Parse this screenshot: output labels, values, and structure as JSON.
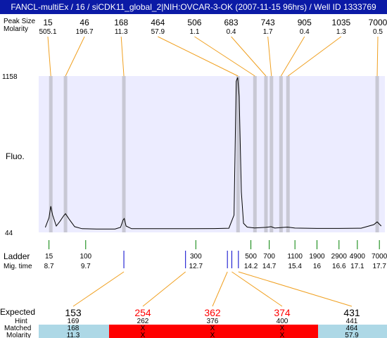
{
  "header": {
    "title": "FANCL-multiEx / 16 / siCDK11_global_2|NIH:OVCAR-3-OK (2007-11-15 96hrs) / Well ID 1333769"
  },
  "row_labels": {
    "peak_size": "Peak Size",
    "molarity": "Molarity",
    "fluo": "Fluo.",
    "ladder": "Ladder",
    "mig_time": "Mig. time",
    "expected": "Expected",
    "hint": "Hint",
    "matched": "Matched",
    "molarity_bottom": "Molarity"
  },
  "colors": {
    "title_bg": "#0b1aa6",
    "plot_bg": "#ececff",
    "peak_band": "#c8c8d4",
    "connector": "#f0a020",
    "ladder_tick": "#008000",
    "sample_tick": "#0000cc",
    "expected_missing": "#ff0000",
    "matched_ok_bg": "#add8e6",
    "matched_fail_bg": "#ff0000"
  },
  "chart_data": {
    "type": "line",
    "y_axis": {
      "min_label": "44",
      "max_label": "1158",
      "ylim": [
        44,
        1158
      ]
    },
    "peaks": [
      {
        "size": "15",
        "molarity": "505.1",
        "mig_time": 8.75
      },
      {
        "size": "46",
        "molarity": "196.7",
        "mig_time": 9.15
      },
      {
        "size": "168",
        "molarity": "11.3",
        "mig_time": 10.74
      },
      {
        "size": "464",
        "molarity": "57.9",
        "mig_time": 13.85
      },
      {
        "size": "506",
        "molarity": "1.1",
        "mig_time": 14.31
      },
      {
        "size": "683",
        "molarity": "0.4",
        "mig_time": 14.61
      },
      {
        "size": "743",
        "molarity": "1.7",
        "mig_time": 14.76
      },
      {
        "size": "905",
        "molarity": "0.4",
        "mig_time": 15.02
      },
      {
        "size": "1035",
        "molarity": "1.3",
        "mig_time": 15.21
      },
      {
        "size": "7000",
        "molarity": "0.5",
        "mig_time": 17.64
      }
    ],
    "trace": [
      [
        8.6,
        60
      ],
      [
        8.7,
        130
      ],
      [
        8.75,
        215
      ],
      [
        8.8,
        150
      ],
      [
        8.9,
        70
      ],
      [
        9.0,
        105
      ],
      [
        9.1,
        145
      ],
      [
        9.15,
        160
      ],
      [
        9.25,
        120
      ],
      [
        9.4,
        65
      ],
      [
        9.6,
        50
      ],
      [
        10.0,
        48
      ],
      [
        10.5,
        48
      ],
      [
        10.65,
        60
      ],
      [
        10.72,
        115
      ],
      [
        10.75,
        125
      ],
      [
        10.8,
        70
      ],
      [
        10.95,
        50
      ],
      [
        11.5,
        50
      ],
      [
        12.5,
        50
      ],
      [
        13.2,
        51
      ],
      [
        13.6,
        54
      ],
      [
        13.74,
        150
      ],
      [
        13.8,
        1130
      ],
      [
        13.84,
        1158
      ],
      [
        13.88,
        1020
      ],
      [
        13.94,
        320
      ],
      [
        14.0,
        90
      ],
      [
        14.1,
        62
      ],
      [
        14.3,
        56
      ],
      [
        14.6,
        60
      ],
      [
        14.75,
        65
      ],
      [
        14.85,
        55
      ],
      [
        15.0,
        58
      ],
      [
        15.2,
        62
      ],
      [
        15.4,
        55
      ],
      [
        16.0,
        52
      ],
      [
        16.6,
        52
      ],
      [
        17.2,
        54
      ],
      [
        17.55,
        80
      ],
      [
        17.64,
        100
      ],
      [
        17.75,
        70
      ]
    ],
    "ladder": [
      {
        "size": "15",
        "mig": "8.7"
      },
      {
        "size": "100",
        "mig": "9.7"
      },
      {
        "size": "300",
        "mig": "12.7"
      },
      {
        "size": "500",
        "mig": "14.2"
      },
      {
        "size": "700",
        "mig": "14.7"
      },
      {
        "size": "1100",
        "mig": "15.4"
      },
      {
        "size": "1900",
        "mig": "16"
      },
      {
        "size": "2900",
        "mig": "16.6"
      },
      {
        "size": "4900",
        "mig": "17.1"
      },
      {
        "size": "7000",
        "mig": "17.7"
      }
    ],
    "sample_markers": [
      10.74,
      12.42,
      13.56,
      13.68,
      13.86
    ],
    "expected": [
      {
        "expected": "153",
        "hint": "169",
        "matched": "168",
        "molarity": "11.3",
        "found": true,
        "mig": 10.74
      },
      {
        "expected": "254",
        "hint": "262",
        "matched": "X",
        "molarity": "X",
        "found": false,
        "mig": 12.42
      },
      {
        "expected": "362",
        "hint": "376",
        "matched": "X",
        "molarity": "X",
        "found": false,
        "mig": 13.56
      },
      {
        "expected": "374",
        "hint": "400",
        "matched": "X",
        "molarity": "X",
        "found": false,
        "mig": 13.68
      },
      {
        "expected": "431",
        "hint": "441",
        "matched": "464",
        "molarity": "57.9",
        "found": true,
        "mig": 13.86
      }
    ]
  }
}
